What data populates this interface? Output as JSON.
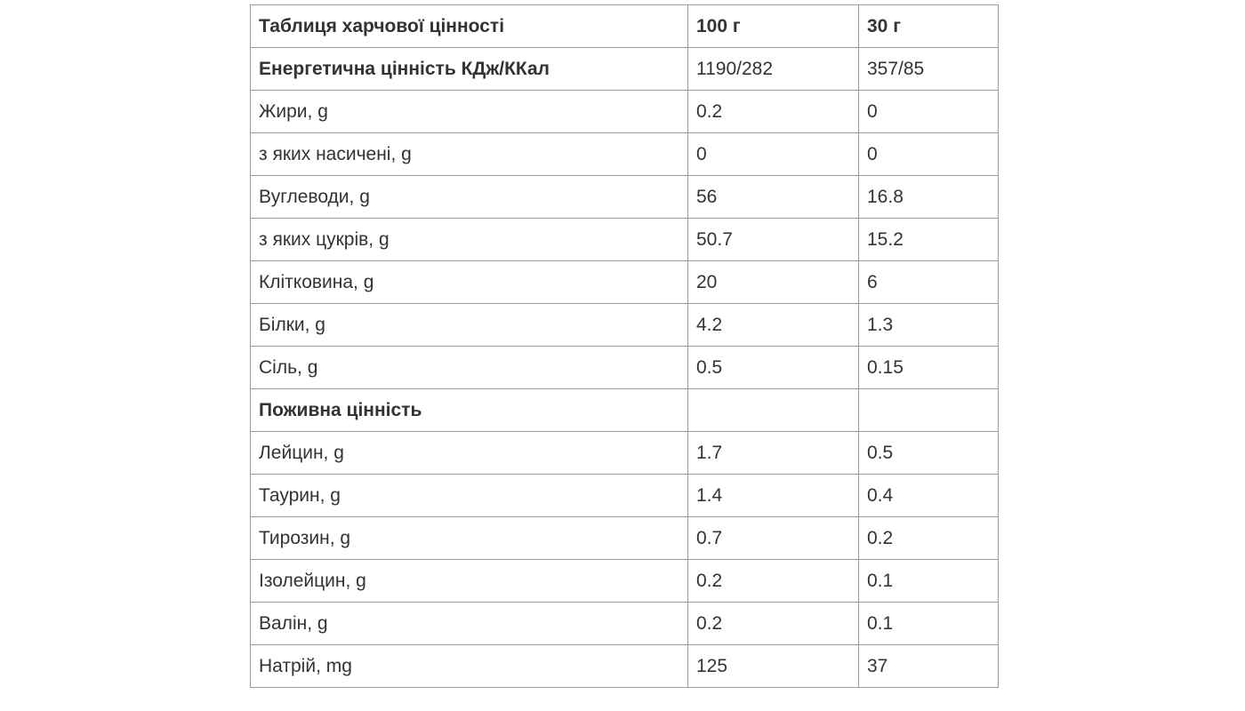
{
  "table": {
    "header": {
      "title": "Таблиця харчової цінності",
      "col_100": "100 г",
      "col_30": "30 г"
    },
    "rows": [
      {
        "label": "Енергетична цінність КДж/ККал",
        "v100": "1190/282",
        "v30": "357/85",
        "bold": true
      },
      {
        "label": "Жири, g",
        "v100": "0.2",
        "v30": "0"
      },
      {
        "label": "з яких насичені, g",
        "v100": "0",
        "v30": "0"
      },
      {
        "label": "Вуглеводи, g",
        "v100": "56",
        "v30": "16.8"
      },
      {
        "label": "з яких цукрів, g",
        "v100": "50.7",
        "v30": "15.2"
      },
      {
        "label": "Клітковина, g",
        "v100": "20",
        "v30": "6"
      },
      {
        "label": "Білки, g",
        "v100": "4.2",
        "v30": "1.3"
      },
      {
        "label": "Сіль, g",
        "v100": "0.5",
        "v30": "0.15"
      },
      {
        "label": "Поживна цінність",
        "v100": "",
        "v30": "",
        "bold": true
      },
      {
        "label": "Лейцин, g",
        "v100": "1.7",
        "v30": "0.5"
      },
      {
        "label": "Таурин, g",
        "v100": "1.4",
        "v30": "0.4"
      },
      {
        "label": "Тирозин, g",
        "v100": "0.7",
        "v30": "0.2"
      },
      {
        "label": "Ізолейцин, g",
        "v100": "0.2",
        "v30": "0.1"
      },
      {
        "label": "Валін, g",
        "v100": "0.2",
        "v30": "0.1"
      },
      {
        "label": "Натрій, mg",
        "v100": "125",
        "v30": "37"
      }
    ]
  }
}
